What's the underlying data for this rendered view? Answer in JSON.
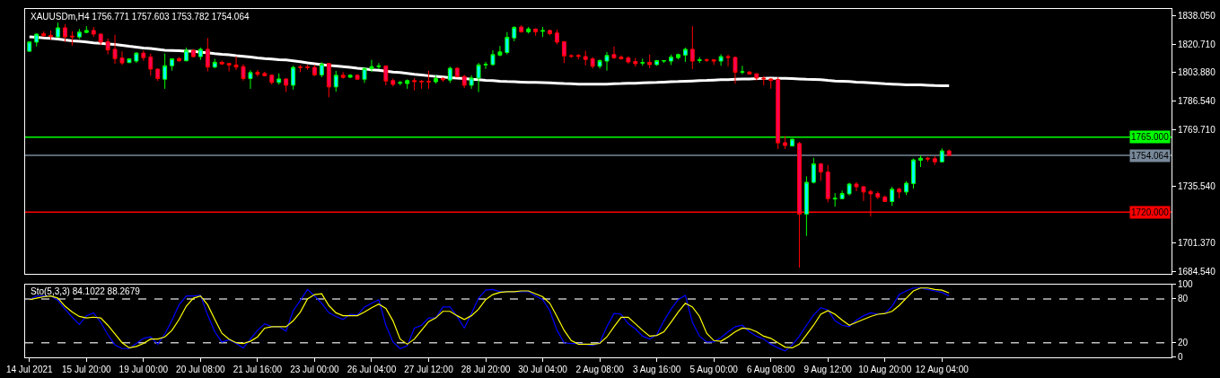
{
  "chart_data": [
    {
      "type": "candlestick",
      "title": "XAUUSDm,H4 1756.771 1757.603 1753.782 1754.064",
      "categories": [
        null,
        null,
        null,
        null,
        null,
        null,
        null,
        null,
        null,
        null,
        null,
        null,
        null,
        null,
        null,
        null,
        null,
        null,
        null,
        null,
        null,
        null,
        null,
        null,
        null,
        null,
        null,
        null,
        null,
        null,
        null,
        null,
        null,
        null,
        null,
        null,
        null,
        null,
        null,
        null,
        null,
        null,
        null,
        null,
        null,
        null,
        null,
        null,
        null,
        null,
        null,
        null,
        null,
        null,
        null,
        null,
        null,
        null,
        null,
        null,
        null,
        null,
        null,
        null,
        null,
        null,
        null,
        null,
        null,
        null,
        null,
        null,
        null,
        null,
        null,
        null,
        null,
        null,
        null,
        null,
        null,
        null,
        null,
        null,
        null,
        null,
        null,
        null,
        null,
        null,
        null,
        null,
        null,
        null,
        null,
        null,
        null,
        null,
        null,
        null,
        null,
        null,
        null,
        null,
        null,
        null,
        null,
        null,
        null,
        null,
        null,
        null,
        null,
        null,
        null,
        null,
        null,
        null,
        null,
        null,
        null,
        null,
        null,
        null,
        null,
        null,
        null,
        null,
        null,
        null
      ],
      "ohlc": [
        [
          1816.6,
          1822.6,
          1816.2,
          1822.2
        ],
        [
          1822.1,
          1827.2,
          1819.5,
          1826.9
        ],
        [
          1827.1,
          1828.6,
          1825.5,
          1825.9
        ],
        [
          1826.2,
          1829.1,
          1823.4,
          1825.5
        ],
        [
          1825.2,
          1833.8,
          1824.8,
          1830.7
        ],
        [
          1830.7,
          1832.8,
          1822.1,
          1825.2
        ],
        [
          1825.7,
          1828.6,
          1820.0,
          1825.3
        ],
        [
          1825.2,
          1830.0,
          1824.0,
          1828.1
        ],
        [
          1827.9,
          1831.7,
          1827.6,
          1829.1
        ],
        [
          1829.1,
          1831.2,
          1825.2,
          1826.9
        ],
        [
          1826.9,
          1827.4,
          1820.3,
          1822.1
        ],
        [
          1822.4,
          1824.3,
          1814.8,
          1817.4
        ],
        [
          1817.8,
          1826.5,
          1809.1,
          1812.2
        ],
        [
          1812.6,
          1816.6,
          1808.4,
          1809.6
        ],
        [
          1809.8,
          1812.2,
          1809.6,
          1812.1
        ],
        [
          1810.7,
          1816.0,
          1809.6,
          1815.5
        ],
        [
          1815.5,
          1817.1,
          1810.9,
          1812.8
        ],
        [
          1813.1,
          1815.2,
          1801.9,
          1805.9
        ],
        [
          1805.9,
          1806.2,
          1798.8,
          1800.2
        ],
        [
          1799.8,
          1815.2,
          1794.1,
          1807.9
        ],
        [
          1807.9,
          1812.2,
          1805.0,
          1812.1
        ],
        [
          1812.2,
          1813.1,
          1810.3,
          1810.9
        ],
        [
          1810.9,
          1818.8,
          1810.5,
          1817.1
        ],
        [
          1817.1,
          1817.8,
          1812.8,
          1813.4
        ],
        [
          1813.4,
          1818.8,
          1811.4,
          1817.8
        ],
        [
          1817.8,
          1824.6,
          1804.5,
          1807.1
        ],
        [
          1807.1,
          1812.1,
          1806.5,
          1810.0
        ],
        [
          1810.0,
          1811.0,
          1808.4,
          1809.0
        ],
        [
          1809.3,
          1809.6,
          1804.5,
          1808.3
        ],
        [
          1808.4,
          1813.6,
          1805.3,
          1807.1
        ],
        [
          1807.4,
          1808.8,
          1799.0,
          1800.2
        ],
        [
          1800.2,
          1805.2,
          1794.1,
          1803.8
        ],
        [
          1804.0,
          1805.3,
          1801.4,
          1802.8
        ],
        [
          1803.3,
          1804.3,
          1801.5,
          1801.9
        ],
        [
          1802.2,
          1802.8,
          1796.7,
          1797.9
        ],
        [
          1797.9,
          1803.3,
          1796.7,
          1800.0
        ],
        [
          1800.0,
          1800.2,
          1792.1,
          1796.2
        ],
        [
          1796.2,
          1807.9,
          1793.6,
          1806.9
        ],
        [
          1807.2,
          1808.3,
          1804.0,
          1806.9
        ],
        [
          1807.2,
          1808.4,
          1805.5,
          1806.9
        ],
        [
          1806.9,
          1808.4,
          1801.7,
          1802.4
        ],
        [
          1802.4,
          1810.0,
          1801.0,
          1808.8
        ],
        [
          1809.3,
          1809.6,
          1789.0,
          1795.2
        ],
        [
          1795.2,
          1804.8,
          1792.4,
          1802.2
        ],
        [
          1802.2,
          1804.1,
          1800.2,
          1800.9
        ],
        [
          1801.0,
          1802.8,
          1800.7,
          1802.2
        ],
        [
          1802.2,
          1802.8,
          1799.7,
          1799.8
        ],
        [
          1799.8,
          1807.1,
          1797.6,
          1806.2
        ],
        [
          1806.2,
          1811.5,
          1804.1,
          1807.4
        ],
        [
          1807.4,
          1809.5,
          1805.9,
          1807.8
        ],
        [
          1807.8,
          1808.1,
          1796.2,
          1798.8
        ],
        [
          1799.0,
          1800.2,
          1795.5,
          1796.7
        ],
        [
          1797.4,
          1798.8,
          1796.2,
          1797.8
        ],
        [
          1797.2,
          1799.7,
          1794.1,
          1799.0
        ],
        [
          1799.0,
          1800.5,
          1793.1,
          1798.4
        ],
        [
          1798.6,
          1799.3,
          1794.1,
          1798.3
        ],
        [
          1798.6,
          1804.8,
          1794.1,
          1798.3
        ],
        [
          1798.3,
          1802.2,
          1797.2,
          1800.2
        ],
        [
          1800.3,
          1801.0,
          1798.3,
          1799.5
        ],
        [
          1799.3,
          1807.4,
          1797.6,
          1806.4
        ],
        [
          1806.4,
          1807.1,
          1801.0,
          1801.4
        ],
        [
          1801.5,
          1802.4,
          1794.5,
          1796.2
        ],
        [
          1796.2,
          1802.2,
          1794.1,
          1800.5
        ],
        [
          1800.5,
          1809.6,
          1792.1,
          1808.4
        ],
        [
          1808.4,
          1810.2,
          1806.0,
          1808.8
        ],
        [
          1808.6,
          1817.2,
          1807.9,
          1814.6
        ],
        [
          1814.3,
          1819.8,
          1813.6,
          1816.2
        ],
        [
          1815.9,
          1828.1,
          1814.8,
          1825.0
        ],
        [
          1824.6,
          1831.7,
          1822.6,
          1830.9
        ],
        [
          1831.2,
          1832.2,
          1827.8,
          1828.3
        ],
        [
          1828.3,
          1831.2,
          1827.2,
          1830.0
        ],
        [
          1830.0,
          1830.2,
          1826.0,
          1828.3
        ],
        [
          1828.6,
          1831.2,
          1825.2,
          1829.0
        ],
        [
          1829.1,
          1829.5,
          1826.2,
          1827.2
        ],
        [
          1827.6,
          1829.6,
          1820.7,
          1822.1
        ],
        [
          1822.4,
          1822.6,
          1809.6,
          1813.8
        ],
        [
          1814.0,
          1814.8,
          1812.6,
          1813.6
        ],
        [
          1814.1,
          1815.0,
          1811.7,
          1813.6
        ],
        [
          1813.4,
          1816.9,
          1808.1,
          1811.7
        ],
        [
          1812.1,
          1813.1,
          1806.2,
          1807.6
        ],
        [
          1807.6,
          1811.7,
          1806.2,
          1811.0
        ],
        [
          1810.7,
          1816.2,
          1805.0,
          1814.1
        ],
        [
          1814.6,
          1819.5,
          1812.1,
          1812.6
        ],
        [
          1813.1,
          1814.1,
          1811.5,
          1812.1
        ],
        [
          1812.6,
          1813.6,
          1809.1,
          1810.2
        ],
        [
          1810.5,
          1812.6,
          1807.4,
          1809.1
        ],
        [
          1809.5,
          1812.1,
          1807.9,
          1809.8
        ],
        [
          1810.0,
          1814.6,
          1806.5,
          1808.6
        ],
        [
          1808.6,
          1811.4,
          1807.9,
          1811.0
        ],
        [
          1810.7,
          1811.0,
          1809.6,
          1811.0
        ],
        [
          1810.7,
          1814.6,
          1808.4,
          1813.1
        ],
        [
          1812.8,
          1815.2,
          1811.7,
          1814.6
        ],
        [
          1814.3,
          1818.8,
          1810.2,
          1817.8
        ],
        [
          1817.8,
          1831.7,
          1805.9,
          1810.7
        ],
        [
          1811.0,
          1813.1,
          1809.6,
          1811.4
        ],
        [
          1811.5,
          1812.2,
          1810.2,
          1811.2
        ],
        [
          1811.5,
          1811.5,
          1808.4,
          1810.7
        ],
        [
          1810.7,
          1814.8,
          1807.9,
          1813.4
        ],
        [
          1813.4,
          1814.6,
          1807.6,
          1812.9
        ],
        [
          1812.9,
          1813.6,
          1797.2,
          1804.0
        ],
        [
          1804.0,
          1807.9,
          1802.8,
          1804.3
        ],
        [
          1804.1,
          1804.8,
          1802.8,
          1802.9
        ],
        [
          1803.1,
          1803.3,
          1799.0,
          1800.5
        ],
        [
          1800.5,
          1801.7,
          1796.2,
          1800.0
        ],
        [
          1800.0,
          1800.5,
          1794.1,
          1799.0
        ],
        [
          1799.7,
          1801.0,
          1757.9,
          1761.6
        ],
        [
          1761.7,
          1765.7,
          1757.9,
          1760.0
        ],
        [
          1759.7,
          1764.0,
          1759.5,
          1763.8
        ],
        [
          1761.2,
          1762.2,
          1686.7,
          1718.8
        ],
        [
          1718.8,
          1741.5,
          1705.7,
          1737.9
        ],
        [
          1737.9,
          1752.6,
          1737.2,
          1749.0
        ],
        [
          1749.0,
          1749.5,
          1738.8,
          1744.1
        ],
        [
          1744.1,
          1748.3,
          1725.9,
          1728.1
        ],
        [
          1727.9,
          1731.4,
          1723.3,
          1728.3
        ],
        [
          1728.1,
          1732.9,
          1727.8,
          1731.2
        ],
        [
          1731.0,
          1737.6,
          1730.0,
          1736.9
        ],
        [
          1736.9,
          1738.1,
          1732.6,
          1735.2
        ],
        [
          1735.3,
          1735.5,
          1726.7,
          1732.1
        ],
        [
          1732.4,
          1733.4,
          1717.4,
          1731.0
        ],
        [
          1731.2,
          1732.4,
          1727.8,
          1729.0
        ],
        [
          1729.1,
          1730.0,
          1726.2,
          1726.4
        ],
        [
          1726.4,
          1735.2,
          1723.8,
          1733.8
        ],
        [
          1733.8,
          1734.7,
          1728.3,
          1732.1
        ],
        [
          1732.1,
          1738.6,
          1730.3,
          1737.4
        ],
        [
          1737.2,
          1752.2,
          1734.1,
          1751.4
        ],
        [
          1751.2,
          1754.1,
          1747.1,
          1752.4
        ],
        [
          1752.4,
          1753.1,
          1750.2,
          1751.9
        ],
        [
          1752.1,
          1753.6,
          1748.4,
          1750.2
        ],
        [
          1750.2,
          1758.3,
          1750.0,
          1756.8
        ],
        [
          1756.771,
          1757.603,
          1753.782,
          1754.064
        ]
      ],
      "colors": [
        "#00ffff",
        "#00ffff",
        "#ff0000",
        "#ff0000",
        "#00ffff",
        "#ff0055",
        "#ff0000",
        "#00ffff",
        "#00ff00",
        "#ff0055",
        "#ff0055",
        "#ff0055",
        "#ff0055",
        "#ff0055",
        "#00ffff",
        "#00ffff",
        "#ff0055",
        "#ff0055",
        "#ff0055",
        "#00ffff",
        "#00ffff",
        "#ff0000",
        "#00ffff",
        "#ff0055",
        "#00ffff",
        "#ff0055",
        "#00ffff",
        "#ff0000",
        "#ff0000",
        "#ff0000",
        "#ff0055",
        "#00ffff",
        "#ff0000",
        "#ff0055",
        "#ff0055",
        "#00ffff",
        "#ff0055",
        "#00ffff",
        "#ff0000",
        "#ff0000",
        "#ff0055",
        "#00ffff",
        "#ff0055",
        "#00ffff",
        "#ff0000",
        "#00ff00",
        "#ff0055",
        "#00ffff",
        "#00ff00",
        "#00ff00",
        "#ff0055",
        "#ff0055",
        "#00ff00",
        "#00ff00",
        "#ff0000",
        "#ff0000",
        "#ff0000",
        "#00ff00",
        "#ff0000",
        "#00ffff",
        "#ff0055",
        "#ff0055",
        "#00ffff",
        "#00ffff",
        "#00ff00",
        "#00ffff",
        "#00ff00",
        "#00ffff",
        "#00ffff",
        "#ff0055",
        "#00ff00",
        "#ff0055",
        "#00ff00",
        "#ff0055",
        "#ff0055",
        "#ff0055",
        "#ff0000",
        "#ff0000",
        "#ff0055",
        "#ff0055",
        "#00ffff",
        "#00ffff",
        "#ff0055",
        "#ff0000",
        "#ff0055",
        "#ff0055",
        "#00ff00",
        "#ff0055",
        "#00ffff",
        "#00ff00",
        "#00ffff",
        "#00ff00",
        "#00ffff",
        "#ff0055",
        "#00ff00",
        "#ff0000",
        "#ff0000",
        "#00ffff",
        "#ff0000",
        "#ff0055",
        "#00ff00",
        "#ff0000",
        "#ff0055",
        "#ff0000",
        "#ff0000",
        "#ff0055",
        "#ff0055",
        "#00ffff",
        "#ff0055",
        "#00ffff",
        "#00ffff",
        "#ff0055",
        "#ff0055",
        "#00ff00",
        "#00ffff",
        "#00ffff",
        "#ff0055",
        "#ff0055",
        "#ff0055",
        "#ff0055",
        "#ff0055",
        "#00ffff",
        "#ff0055",
        "#00ffff",
        "#00ffff",
        "#00ff00",
        "#ff0000",
        "#ff0055",
        "#00ffff",
        "#ff0055"
      ],
      "series": [
        {
          "type": "line",
          "color": "#ffffff",
          "values": [
            1825.3,
            1825.0,
            1824.6,
            1824.3,
            1824.0,
            1823.4,
            1822.9,
            1822.6,
            1822.2,
            1821.7,
            1821.4,
            1821.0,
            1820.7,
            1820.2,
            1819.6,
            1819.1,
            1818.6,
            1818.3,
            1817.8,
            1817.2,
            1817.1,
            1816.9,
            1816.7,
            1816.6,
            1816.0,
            1815.7,
            1815.2,
            1814.8,
            1814.5,
            1814.0,
            1813.6,
            1813.1,
            1812.6,
            1812.2,
            1811.9,
            1811.5,
            1811.4,
            1810.9,
            1810.3,
            1809.6,
            1809.1,
            1808.6,
            1808.1,
            1807.8,
            1807.4,
            1806.9,
            1806.4,
            1806.0,
            1805.5,
            1805.2,
            1804.7,
            1804.1,
            1803.8,
            1803.3,
            1802.8,
            1802.4,
            1801.9,
            1801.5,
            1801.2,
            1800.7,
            1800.5,
            1800.2,
            1799.8,
            1799.5,
            1799.1,
            1799.0,
            1798.6,
            1798.4,
            1798.3,
            1798.1,
            1797.9,
            1797.9,
            1797.8,
            1797.6,
            1797.4,
            1797.2,
            1797.1,
            1796.9,
            1796.9,
            1796.9,
            1796.9,
            1796.9,
            1797.1,
            1797.2,
            1797.4,
            1797.4,
            1797.6,
            1797.8,
            1797.9,
            1798.1,
            1798.3,
            1798.4,
            1798.6,
            1798.8,
            1799.0,
            1799.1,
            1799.3,
            1799.5,
            1799.5,
            1799.8,
            1800.0,
            1800.0,
            1800.2,
            1800.3,
            1800.5,
            1800.3,
            1800.3,
            1800.2,
            1800.0,
            1799.8,
            1799.7,
            1799.5,
            1799.1,
            1798.8,
            1798.6,
            1798.4,
            1798.1,
            1797.9,
            1797.6,
            1797.4,
            1797.1,
            1796.9,
            1796.7,
            1796.5,
            1796.5,
            1796.4,
            1796.2,
            1796.0,
            1795.9,
            1795.9
          ]
        }
      ],
      "ylim": [
        1683,
        1842
      ],
      "yticks": [
        {
          "value": 1838.05,
          "label": "1838.050"
        },
        {
          "value": 1820.71,
          "label": "1820.710"
        },
        {
          "value": 1803.88,
          "label": "1803.880"
        },
        {
          "value": 1786.54,
          "label": "1786.540"
        },
        {
          "value": 1769.71,
          "label": "1769.710"
        },
        {
          "value": 1735.54,
          "label": "1735.540"
        },
        {
          "value": 1701.37,
          "label": "1701.370"
        },
        {
          "value": 1684.54,
          "label": "1684.540"
        }
      ],
      "ref_lines": [
        {
          "axis": "y",
          "value": 1765,
          "label": "1765.000",
          "color": "#00ff00"
        },
        {
          "axis": "y",
          "value": 1754.064,
          "label": "1754.064",
          "color": "#778899"
        },
        {
          "axis": "y",
          "value": 1720,
          "label": "1720.000",
          "color": "#ff0000"
        }
      ],
      "tick_labels": "y"
    },
    {
      "type": "line",
      "title": "Sto(5,3,3) 84.1022 88.2679",
      "categories": [
        "14 Jul 2021",
        null,
        null,
        null,
        null,
        null,
        null,
        null,
        "15 Jul 20:00",
        null,
        null,
        null,
        null,
        null,
        null,
        null,
        "19 Jul 00:00",
        null,
        null,
        null,
        null,
        null,
        null,
        null,
        "20 Jul 08:00",
        null,
        null,
        null,
        null,
        null,
        null,
        null,
        "21 Jul 16:00",
        null,
        null,
        null,
        null,
        null,
        null,
        null,
        "23 Jul 00:00",
        null,
        null,
        null,
        null,
        null,
        null,
        null,
        "26 Jul 04:00",
        null,
        null,
        null,
        null,
        null,
        null,
        null,
        "27 Jul 12:00",
        null,
        null,
        null,
        null,
        null,
        null,
        null,
        "28 Jul 20:00",
        null,
        null,
        null,
        null,
        null,
        null,
        null,
        "30 Jul 04:00",
        null,
        null,
        null,
        null,
        null,
        null,
        null,
        "2 Aug 08:00",
        null,
        null,
        null,
        null,
        null,
        null,
        null,
        "3 Aug 16:00",
        null,
        null,
        null,
        null,
        null,
        null,
        null,
        "5 Aug 00:00",
        null,
        null,
        null,
        null,
        null,
        null,
        null,
        "6 Aug 08:00",
        null,
        null,
        null,
        null,
        null,
        null,
        null,
        "9 Aug 12:00",
        null,
        null,
        null,
        null,
        null,
        null,
        null,
        "10 Aug 20:00",
        null,
        null,
        null,
        null,
        null,
        null,
        null,
        "12 Aug 04:00",
        null
      ],
      "series": [
        {
          "color": "#0000ff",
          "values": [
            79,
            84,
            84,
            84,
            78,
            66,
            55,
            45,
            57,
            61,
            48,
            31,
            17,
            12,
            12,
            19,
            26,
            28,
            18,
            32,
            51,
            72,
            84,
            84,
            85,
            58,
            35,
            21,
            24,
            19,
            13,
            25,
            37,
            46,
            42,
            42,
            36,
            64,
            78,
            93,
            84,
            74,
            61,
            56,
            52,
            59,
            58,
            69,
            74,
            79,
            44,
            21,
            12,
            16,
            40,
            44,
            54,
            54,
            69,
            69,
            56,
            40,
            60,
            81,
            92,
            93,
            90,
            90,
            90,
            90,
            90,
            84,
            79,
            64,
            37,
            20,
            19,
            19,
            18,
            16,
            20,
            42,
            60,
            59,
            46,
            39,
            29,
            25,
            31,
            50,
            66,
            79,
            85,
            48,
            29,
            21,
            21,
            27,
            35,
            42,
            44,
            35,
            29,
            25,
            18,
            13,
            9,
            17,
            29,
            44,
            58,
            68,
            65,
            50,
            44,
            42,
            51,
            57,
            61,
            59,
            60,
            70,
            86,
            91,
            95,
            95,
            93,
            91,
            89,
            84.1022
          ]
        },
        {
          "color": "#ffff00",
          "values": [
            79,
            81,
            83,
            84,
            81,
            70,
            62,
            56,
            54,
            55,
            54,
            44,
            32,
            20,
            13,
            15,
            19,
            25,
            25,
            28,
            37,
            52,
            70,
            81,
            84,
            72,
            52,
            33,
            25,
            20,
            19,
            22,
            28,
            40,
            42,
            42,
            42,
            50,
            62,
            80,
            86,
            87,
            71,
            61,
            57,
            57,
            57,
            62,
            68,
            73,
            67,
            50,
            25,
            18,
            25,
            37,
            49,
            54,
            63,
            63,
            57,
            52,
            57,
            66,
            79,
            86,
            89,
            90,
            90,
            91,
            91,
            87,
            83,
            74,
            56,
            37,
            23,
            18,
            18,
            18,
            19,
            28,
            42,
            55,
            55,
            46,
            37,
            29,
            30,
            35,
            48,
            62,
            74,
            69,
            56,
            33,
            23,
            22,
            28,
            35,
            40,
            39,
            35,
            29,
            26,
            20,
            14,
            13,
            18,
            31,
            44,
            59,
            64,
            59,
            51,
            44,
            48,
            52,
            56,
            59,
            60,
            63,
            71,
            81,
            91,
            95,
            95,
            93,
            92,
            88.2679
          ]
        }
      ],
      "ylim": [
        0,
        100
      ],
      "yticks": [
        0,
        20,
        80,
        100
      ],
      "ref_lines": [
        {
          "axis": "y",
          "value": 80,
          "color": "#c0c0c0",
          "line_style": "dashed"
        },
        {
          "axis": "y",
          "value": 20,
          "color": "#c0c0c0",
          "line_style": "dashed"
        }
      ]
    }
  ]
}
